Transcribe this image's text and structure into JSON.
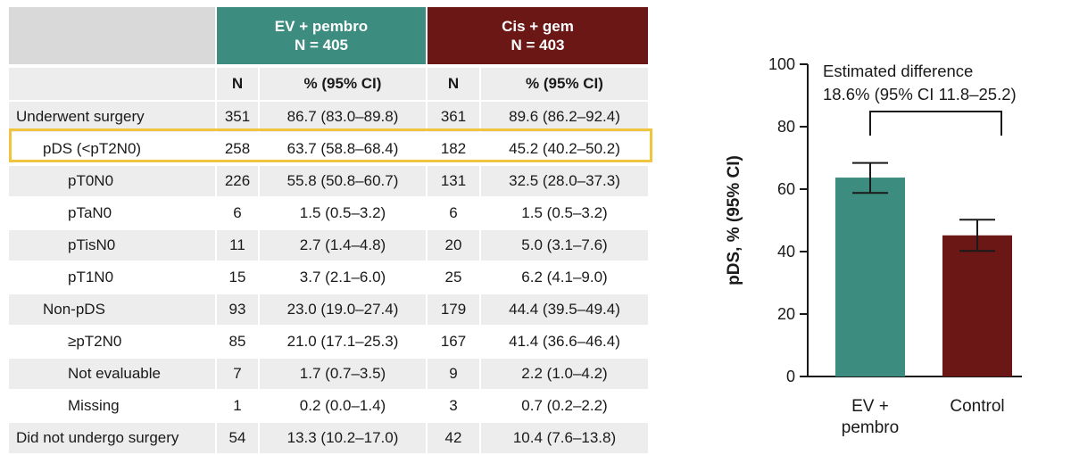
{
  "colors": {
    "ev_pembro": "#3D8C80",
    "cis_gem": "#6B1716",
    "header_gray": "#D9D9D9",
    "row_band": "#EDEDED",
    "highlight": "#F0C43E"
  },
  "table": {
    "groups": [
      {
        "name": "EV + pembro",
        "n_label": "N = 405"
      },
      {
        "name": "Cis + gem",
        "n_label": "N = 403"
      }
    ],
    "subheaders": [
      "N",
      "% (95% CI)",
      "N",
      "% (95% CI)"
    ],
    "rows": [
      {
        "label": "Underwent surgery",
        "indent": 0,
        "ev_n": "351",
        "ev_pct": "86.7 (83.0–89.8)",
        "cg_n": "361",
        "cg_pct": "89.6 (86.2–92.4)"
      },
      {
        "label": "pDS (<pT2N0)",
        "indent": 1,
        "ev_n": "258",
        "ev_pct": "63.7 (58.8–68.4)",
        "cg_n": "182",
        "cg_pct": "45.2 (40.2–50.2)"
      },
      {
        "label": "pT0N0",
        "indent": 2,
        "ev_n": "226",
        "ev_pct": "55.8 (50.8–60.7)",
        "cg_n": "131",
        "cg_pct": "32.5 (28.0–37.3)"
      },
      {
        "label": "pTaN0",
        "indent": 2,
        "ev_n": "6",
        "ev_pct": "1.5 (0.5–3.2)",
        "cg_n": "6",
        "cg_pct": "1.5 (0.5–3.2)"
      },
      {
        "label": "pTisN0",
        "indent": 2,
        "ev_n": "11",
        "ev_pct": "2.7 (1.4–4.8)",
        "cg_n": "20",
        "cg_pct": "5.0 (3.1–7.6)"
      },
      {
        "label": "pT1N0",
        "indent": 2,
        "ev_n": "15",
        "ev_pct": "3.7 (2.1–6.0)",
        "cg_n": "25",
        "cg_pct": "6.2 (4.1–9.0)"
      },
      {
        "label": "Non-pDS",
        "indent": 1,
        "ev_n": "93",
        "ev_pct": "23.0 (19.0–27.4)",
        "cg_n": "179",
        "cg_pct": "44.4 (39.5–49.4)"
      },
      {
        "label": "≥pT2N0",
        "indent": 2,
        "ev_n": "85",
        "ev_pct": "21.0 (17.1–25.3)",
        "cg_n": "167",
        "cg_pct": "41.4 (36.6–46.4)"
      },
      {
        "label": "Not evaluable",
        "indent": 2,
        "ev_n": "7",
        "ev_pct": "1.7 (0.7–3.5)",
        "cg_n": "9",
        "cg_pct": "2.2 (1.0–4.2)"
      },
      {
        "label": "Missing",
        "indent": 2,
        "ev_n": "1",
        "ev_pct": "0.2 (0.0–1.4)",
        "cg_n": "3",
        "cg_pct": "0.7 (0.2–2.2)"
      },
      {
        "label": "Did not undergo surgery",
        "indent": 0,
        "ev_n": "54",
        "ev_pct": "13.3 (10.2–17.0)",
        "cg_n": "42",
        "cg_pct": "10.4 (7.6–13.8)"
      }
    ]
  },
  "chart_data": {
    "type": "bar",
    "categories": [
      [
        "EV +",
        "pembro"
      ],
      [
        "Control"
      ]
    ],
    "values": [
      63.7,
      45.2
    ],
    "ci_low": [
      58.8,
      40.2
    ],
    "ci_high": [
      68.4,
      50.2
    ],
    "ylabel": "pDS, % (95% CI)",
    "ylim": [
      0,
      100
    ],
    "yticks": [
      0,
      20,
      40,
      60,
      80,
      100
    ],
    "annotation": [
      "Estimated difference",
      "18.6% (95% CI 11.8–25.2)"
    ],
    "bar_colors": [
      "#3D8C80",
      "#6B1716"
    ],
    "grid": false
  }
}
